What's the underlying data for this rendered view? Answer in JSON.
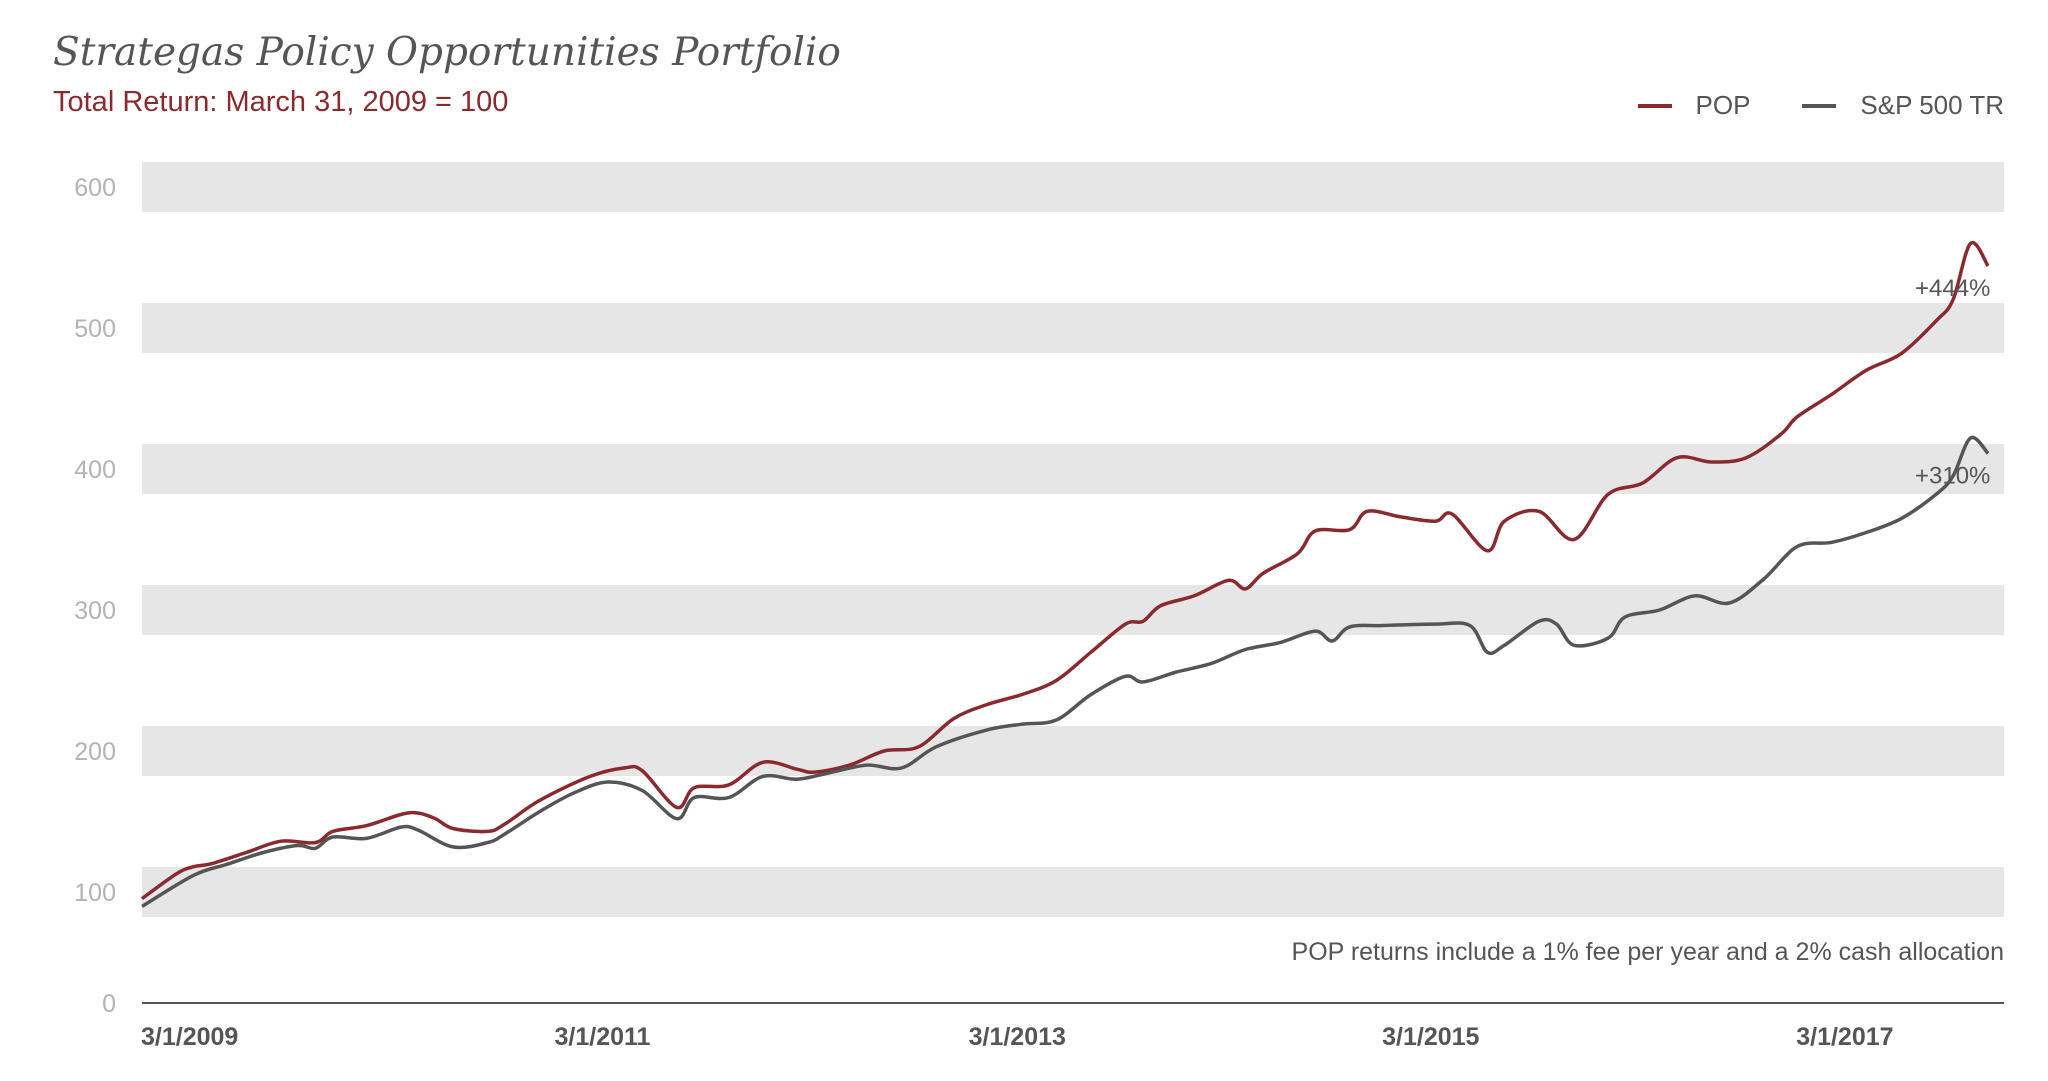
{
  "chart_data": {
    "type": "line",
    "title": "Strategas Policy Opportunities Portfolio",
    "subtitle": "Total Return: March 31, 2009 = 100",
    "ylim": [
      0,
      600
    ],
    "yticks": [
      0,
      100,
      200,
      300,
      400,
      500,
      600
    ],
    "xlim": [
      "2009-03-01",
      "2018-03-01"
    ],
    "xticks": [
      "3/1/2009",
      "3/1/2011",
      "3/1/2013",
      "3/1/2015",
      "3/1/2017"
    ],
    "grid": "alternating horizontal bands",
    "legend": "top-right",
    "note": "POP returns include a 1% fee per year and a 2% cash allocation",
    "series": [
      {
        "name": "POP",
        "color": "#8b2a2e",
        "end_label": "+444%",
        "points": [
          [
            "2009-03-01",
            94
          ],
          [
            "2009-05-01",
            113
          ],
          [
            "2009-06-01",
            118
          ],
          [
            "2009-07-01",
            120
          ],
          [
            "2009-09-01",
            128
          ],
          [
            "2009-11-01",
            136
          ],
          [
            "2010-01-01",
            135
          ],
          [
            "2010-02-01",
            143
          ],
          [
            "2010-04-01",
            147
          ],
          [
            "2010-06-01",
            155
          ],
          [
            "2010-07-01",
            156
          ],
          [
            "2010-08-01",
            152
          ],
          [
            "2010-09-01",
            145
          ],
          [
            "2010-11-01",
            143
          ],
          [
            "2010-12-01",
            148
          ],
          [
            "2011-02-01",
            165
          ],
          [
            "2011-05-01",
            182
          ],
          [
            "2011-07-01",
            188
          ],
          [
            "2011-08-01",
            186
          ],
          [
            "2011-10-01",
            160
          ],
          [
            "2011-11-01",
            174
          ],
          [
            "2012-01-01",
            176
          ],
          [
            "2012-03-01",
            192
          ],
          [
            "2012-05-01",
            187
          ],
          [
            "2012-06-01",
            185
          ],
          [
            "2012-08-01",
            190
          ],
          [
            "2012-10-01",
            200
          ],
          [
            "2012-12-01",
            203
          ],
          [
            "2013-02-01",
            223
          ],
          [
            "2013-04-01",
            233
          ],
          [
            "2013-06-01",
            240
          ],
          [
            "2013-08-01",
            250
          ],
          [
            "2013-10-01",
            270
          ],
          [
            "2013-12-01",
            290
          ],
          [
            "2014-01-01",
            292
          ],
          [
            "2014-02-01",
            303
          ],
          [
            "2014-04-01",
            310
          ],
          [
            "2014-06-01",
            321
          ],
          [
            "2014-07-01",
            315
          ],
          [
            "2014-08-01",
            326
          ],
          [
            "2014-10-01",
            340
          ],
          [
            "2014-11-01",
            356
          ],
          [
            "2015-01-01",
            357
          ],
          [
            "2015-02-01",
            370
          ],
          [
            "2015-04-01",
            366
          ],
          [
            "2015-06-01",
            363
          ],
          [
            "2015-07-01",
            368
          ],
          [
            "2015-09-01",
            342
          ],
          [
            "2015-10-01",
            363
          ],
          [
            "2015-12-01",
            370
          ],
          [
            "2016-02-01",
            350
          ],
          [
            "2016-04-01",
            382
          ],
          [
            "2016-06-01",
            390
          ],
          [
            "2016-08-01",
            408
          ],
          [
            "2016-10-01",
            405
          ],
          [
            "2016-12-01",
            408
          ],
          [
            "2017-02-01",
            425
          ],
          [
            "2017-03-01",
            437
          ],
          [
            "2017-05-01",
            453
          ],
          [
            "2017-07-01",
            470
          ],
          [
            "2017-09-01",
            482
          ],
          [
            "2017-11-01",
            505
          ],
          [
            "2017-12-01",
            520
          ],
          [
            "2018-01-01",
            560
          ],
          [
            "2018-02-01",
            544
          ]
        ]
      },
      {
        "name": "S&P 500 TR",
        "color": "#555555",
        "end_label": "+310%",
        "points": [
          [
            "2009-03-01",
            87
          ],
          [
            "2009-06-01",
            112
          ],
          [
            "2009-08-01",
            120
          ],
          [
            "2009-10-01",
            128
          ],
          [
            "2009-12-01",
            133
          ],
          [
            "2010-01-01",
            131
          ],
          [
            "2010-02-01",
            139
          ],
          [
            "2010-04-01",
            138
          ],
          [
            "2010-06-01",
            146
          ],
          [
            "2010-07-01",
            144
          ],
          [
            "2010-09-01",
            132
          ],
          [
            "2010-11-01",
            135
          ],
          [
            "2010-12-01",
            141
          ],
          [
            "2011-02-01",
            157
          ],
          [
            "2011-04-01",
            170
          ],
          [
            "2011-06-01",
            178
          ],
          [
            "2011-08-01",
            172
          ],
          [
            "2011-10-01",
            152
          ],
          [
            "2011-11-01",
            167
          ],
          [
            "2012-01-01",
            167
          ],
          [
            "2012-03-01",
            182
          ],
          [
            "2012-05-01",
            180
          ],
          [
            "2012-07-01",
            185
          ],
          [
            "2012-09-01",
            190
          ],
          [
            "2012-11-01",
            188
          ],
          [
            "2013-01-01",
            203
          ],
          [
            "2013-04-01",
            215
          ],
          [
            "2013-06-01",
            219
          ],
          [
            "2013-08-01",
            222
          ],
          [
            "2013-10-01",
            240
          ],
          [
            "2013-12-01",
            253
          ],
          [
            "2014-01-01",
            249
          ],
          [
            "2014-03-01",
            256
          ],
          [
            "2014-05-01",
            262
          ],
          [
            "2014-07-01",
            272
          ],
          [
            "2014-09-01",
            277
          ],
          [
            "2014-11-01",
            285
          ],
          [
            "2014-12-01",
            278
          ],
          [
            "2015-01-01",
            288
          ],
          [
            "2015-03-01",
            289
          ],
          [
            "2015-06-01",
            290
          ],
          [
            "2015-08-01",
            289
          ],
          [
            "2015-09-01",
            270
          ],
          [
            "2015-10-01",
            275
          ],
          [
            "2015-12-01",
            292
          ],
          [
            "2016-01-01",
            290
          ],
          [
            "2016-02-01",
            275
          ],
          [
            "2016-04-01",
            280
          ],
          [
            "2016-05-01",
            295
          ],
          [
            "2016-07-01",
            300
          ],
          [
            "2016-09-01",
            310
          ],
          [
            "2016-11-01",
            305
          ],
          [
            "2017-01-01",
            322
          ],
          [
            "2017-03-01",
            345
          ],
          [
            "2017-05-01",
            348
          ],
          [
            "2017-07-01",
            355
          ],
          [
            "2017-09-01",
            365
          ],
          [
            "2017-11-01",
            382
          ],
          [
            "2017-12-01",
            395
          ],
          [
            "2018-01-01",
            422
          ],
          [
            "2018-02-01",
            411
          ]
        ]
      }
    ]
  }
}
